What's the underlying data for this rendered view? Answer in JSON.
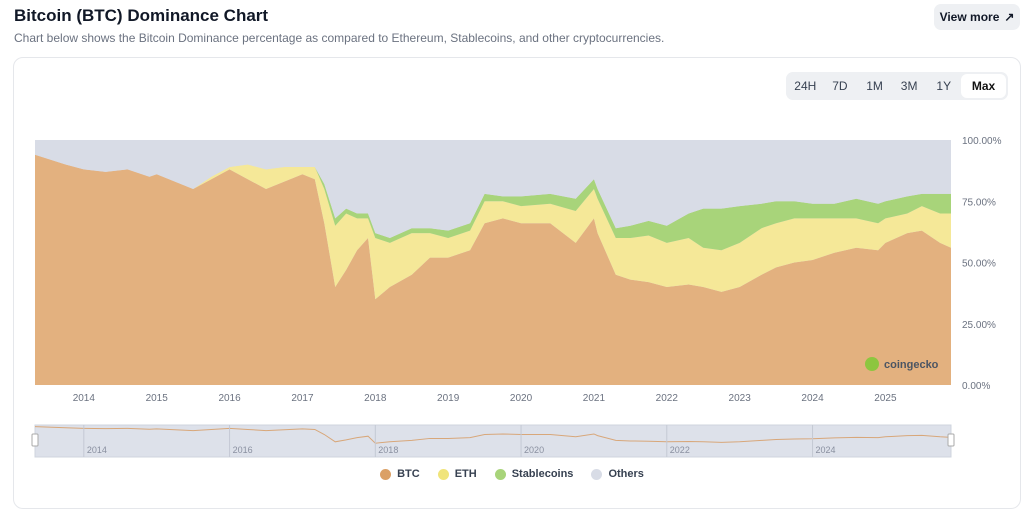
{
  "header": {
    "title": "Bitcoin (BTC) Dominance Chart",
    "subtitle": "Chart below shows the Bitcoin Dominance percentage as compared to Ethereum, Stablecoins, and other cryptocurrencies.",
    "view_more": "View more"
  },
  "ranges": [
    "24H",
    "7D",
    "1M",
    "3M",
    "1Y",
    "Max"
  ],
  "active_range": "Max",
  "watermark": "coingecko",
  "chart_data": {
    "type": "area",
    "stacked": true,
    "title": "Bitcoin (BTC) Dominance Chart",
    "xlim": [
      2013.33,
      2025.9
    ],
    "ylim": [
      0,
      100
    ],
    "x_ticks": [
      "2014",
      "2015",
      "2016",
      "2017",
      "2018",
      "2019",
      "2020",
      "2021",
      "2022",
      "2023",
      "2024",
      "2025"
    ],
    "y_ticks": [
      "0.00%",
      "25.00%",
      "50.00%",
      "75.00%",
      "100.00%"
    ],
    "navigator_ticks": [
      "2014",
      "2016",
      "2018",
      "2020",
      "2022",
      "2024"
    ],
    "legend_position": "bottom",
    "x": [
      2013.33,
      2013.75,
      2014.0,
      2014.3,
      2014.6,
      2014.9,
      2015.0,
      2015.5,
      2015.75,
      2016.0,
      2016.25,
      2016.5,
      2016.75,
      2017.0,
      2017.17,
      2017.3,
      2017.45,
      2017.6,
      2017.75,
      2017.9,
      2018.0,
      2018.2,
      2018.5,
      2018.75,
      2019.0,
      2019.3,
      2019.5,
      2019.75,
      2020.0,
      2020.4,
      2020.75,
      2021.0,
      2021.05,
      2021.3,
      2021.5,
      2021.75,
      2022.0,
      2022.3,
      2022.5,
      2022.75,
      2023.0,
      2023.3,
      2023.5,
      2023.75,
      2024.0,
      2024.3,
      2024.6,
      2024.9,
      2025.0,
      2025.3,
      2025.5,
      2025.75,
      2025.9
    ],
    "series": [
      {
        "name": "BTC",
        "color": "#e3b17f",
        "values": [
          94,
          90,
          88,
          87,
          88,
          85,
          86,
          80,
          84,
          88,
          84,
          80,
          83,
          86,
          84,
          66,
          40,
          47,
          55,
          60,
          35,
          40,
          45,
          52,
          52,
          55,
          66,
          68,
          66,
          66,
          58,
          68,
          62,
          45,
          43,
          42,
          40,
          41,
          40,
          38,
          40,
          45,
          48,
          50,
          51,
          54,
          56,
          55,
          58,
          62,
          63,
          58,
          56
        ]
      },
      {
        "name": "ETH",
        "color": "#f5e898",
        "values": [
          0,
          0,
          0,
          0,
          0,
          0,
          0,
          0,
          1,
          1,
          6,
          8,
          6,
          3,
          5,
          14,
          25,
          23,
          13,
          8,
          25,
          18,
          17,
          10,
          8,
          8,
          9,
          7,
          7,
          8,
          13,
          12,
          14,
          15,
          17,
          19,
          18,
          19,
          16,
          17,
          18,
          19,
          18,
          18,
          17,
          14,
          12,
          11,
          10,
          8,
          10,
          12,
          14
        ]
      },
      {
        "name": "Stablecoins",
        "color": "#a8d47a",
        "values": [
          0,
          0,
          0,
          0,
          0,
          0,
          0,
          0,
          0,
          0,
          0,
          0,
          0,
          0,
          0,
          2,
          3,
          2,
          2,
          2,
          2,
          2,
          2,
          2,
          3,
          3,
          3,
          2,
          4,
          4,
          5,
          4,
          4,
          4,
          5,
          6,
          7,
          10,
          16,
          17,
          15,
          10,
          9,
          7,
          6,
          6,
          8,
          8,
          7,
          7,
          5,
          8,
          8
        ]
      },
      {
        "name": "Others",
        "color": "#d8dce6",
        "values": [
          6,
          10,
          12,
          13,
          12,
          15,
          14,
          20,
          15,
          11,
          10,
          12,
          11,
          11,
          11,
          18,
          32,
          28,
          30,
          30,
          38,
          40,
          36,
          36,
          37,
          34,
          22,
          23,
          23,
          22,
          24,
          16,
          20,
          36,
          35,
          33,
          35,
          30,
          28,
          28,
          27,
          26,
          25,
          25,
          26,
          26,
          24,
          26,
          25,
          23,
          22,
          22,
          22
        ]
      }
    ]
  }
}
